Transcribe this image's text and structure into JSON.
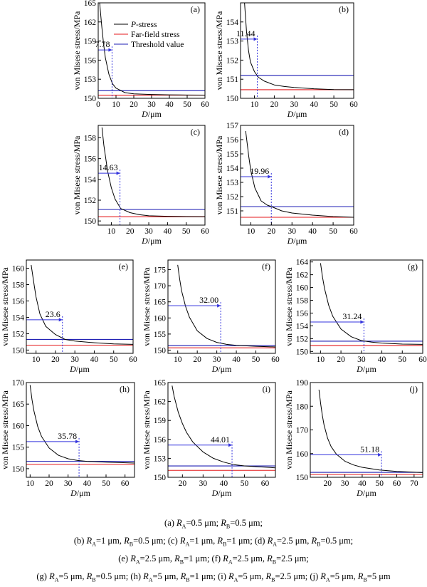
{
  "colors": {
    "p_stress": "#000000",
    "far_field": "#e41a1c",
    "threshold": "#1f1fb4",
    "marker": "#3333dd"
  },
  "axis_labels": {
    "y": "von Misese stress/MPa",
    "x_var": "D",
    "x_unit": "/μm"
  },
  "legend": {
    "p_stress_italic": "P",
    "p_stress_rest": "-stress",
    "far_field": "Far-field stress",
    "threshold": "Threshold value"
  },
  "chart_data": [
    {
      "type": "line",
      "panel": "(a)",
      "xlim": [
        0,
        60
      ],
      "ylim": [
        150,
        165
      ],
      "xticks": [
        0,
        10,
        20,
        30,
        40,
        50,
        60
      ],
      "yticks": [
        150,
        153,
        156,
        159,
        162,
        165
      ],
      "far_field": 150.5,
      "threshold": 151.2,
      "threshold_x": 7.78,
      "threshold_label": "7.78",
      "marker_y": 157.6,
      "legend_position": "top-right",
      "series": [
        {
          "x": [
            0.8,
            2,
            3,
            4,
            6,
            8,
            10,
            15,
            20,
            30,
            40,
            50,
            60
          ],
          "y": [
            165,
            161.3,
            158.6,
            156.4,
            153.8,
            152.3,
            151.6,
            150.9,
            150.7,
            150.6,
            150.55,
            150.52,
            150.5
          ]
        }
      ]
    },
    {
      "type": "line",
      "panel": "(b)",
      "xlim": [
        3,
        60
      ],
      "ylim": [
        150,
        155
      ],
      "xticks": [
        10,
        20,
        30,
        40,
        50,
        60
      ],
      "yticks": [
        150,
        151,
        152,
        153,
        154
      ],
      "far_field": 150.45,
      "threshold": 151.2,
      "threshold_x": 11.44,
      "threshold_label": "11.44",
      "marker_y": 153.1,
      "series": [
        {
          "x": [
            5,
            6,
            7,
            8,
            10,
            12,
            15,
            20,
            25,
            30,
            40,
            50,
            60
          ],
          "y": [
            155,
            153.5,
            152.5,
            151.9,
            151.4,
            151.1,
            150.9,
            150.7,
            150.62,
            150.57,
            150.5,
            150.46,
            150.45
          ]
        }
      ]
    },
    {
      "type": "line",
      "panel": "(c)",
      "xlim": [
        3,
        60
      ],
      "ylim": [
        149.6,
        159.2
      ],
      "xticks": [
        10,
        20,
        30,
        40,
        50,
        60
      ],
      "yticks": [
        150,
        152,
        154,
        156,
        158
      ],
      "far_field": 150.4,
      "threshold": 151.1,
      "threshold_x": 14.63,
      "threshold_label": "14.63",
      "marker_y": 154.6,
      "series": [
        {
          "x": [
            5,
            6,
            8,
            10,
            12,
            15,
            20,
            25,
            30,
            40,
            50,
            60
          ],
          "y": [
            159,
            157.3,
            154.8,
            153.2,
            152.1,
            151.2,
            150.8,
            150.6,
            150.5,
            150.45,
            150.42,
            150.4
          ]
        }
      ]
    },
    {
      "type": "line",
      "panel": "(d)",
      "xlim": [
        5,
        60
      ],
      "ylim": [
        150,
        157
      ],
      "xticks": [
        10,
        20,
        30,
        40,
        50,
        60
      ],
      "yticks": [
        151,
        152,
        153,
        154,
        155,
        156,
        157
      ],
      "far_field": 150.55,
      "threshold": 151.3,
      "threshold_x": 19.96,
      "threshold_label": "19.96",
      "marker_y": 153.4,
      "series": [
        {
          "x": [
            7.5,
            9,
            10,
            12,
            15,
            18,
            20,
            25,
            30,
            40,
            50,
            60
          ],
          "y": [
            156.6,
            154.8,
            153.8,
            152.6,
            151.7,
            151.4,
            151.3,
            151,
            150.85,
            150.7,
            150.6,
            150.55
          ]
        }
      ]
    },
    {
      "type": "line",
      "panel": "(e)",
      "xlim": [
        5,
        60
      ],
      "ylim": [
        149.6,
        161
      ],
      "xticks": [
        10,
        20,
        30,
        40,
        50,
        60
      ],
      "yticks": [
        150,
        152,
        154,
        156,
        158,
        160
      ],
      "far_field": 150.6,
      "threshold": 151.3,
      "threshold_x": 23.6,
      "threshold_label": "23.6",
      "marker_y": 153.7,
      "series": [
        {
          "x": [
            7.5,
            9,
            10,
            12,
            15,
            20,
            25,
            30,
            40,
            50,
            60
          ],
          "y": [
            160.4,
            158,
            156.5,
            154.4,
            152.9,
            151.9,
            151.3,
            151.1,
            150.9,
            150.75,
            150.7
          ]
        }
      ]
    },
    {
      "type": "line",
      "panel": "(f)",
      "xlim": [
        5,
        60
      ],
      "ylim": [
        149,
        178
      ],
      "xticks": [
        10,
        20,
        30,
        40,
        50,
        60
      ],
      "yticks": [
        150,
        155,
        160,
        165,
        170,
        175
      ],
      "far_field": 150.7,
      "threshold": 151.4,
      "threshold_x": 32.0,
      "threshold_label": "32.00",
      "marker_y": 163.8,
      "series": [
        {
          "x": [
            10,
            11,
            12,
            14,
            16,
            20,
            25,
            30,
            35,
            40,
            50,
            60
          ],
          "y": [
            176.5,
            172,
            168.4,
            163.6,
            160.2,
            156,
            153.6,
            152.4,
            151.8,
            151.5,
            151.2,
            151
          ]
        }
      ]
    },
    {
      "type": "line",
      "panel": "(g)",
      "xlim": [
        5,
        60
      ],
      "ylim": [
        149.7,
        164.3
      ],
      "xticks": [
        10,
        20,
        30,
        40,
        50,
        60
      ],
      "yticks": [
        150,
        152,
        154,
        156,
        158,
        160,
        162,
        164
      ],
      "far_field": 150.9,
      "threshold": 151.6,
      "threshold_x": 31.24,
      "threshold_label": "31.24",
      "marker_y": 154.6,
      "series": [
        {
          "x": [
            10,
            11,
            12,
            14,
            16,
            20,
            25,
            30,
            35,
            40,
            50,
            60
          ],
          "y": [
            163.8,
            161.6,
            159.8,
            157.2,
            155.5,
            153.5,
            152.3,
            151.7,
            151.45,
            151.3,
            151.15,
            151.1
          ]
        }
      ]
    },
    {
      "type": "line",
      "panel": "(h)",
      "xlim": [
        8,
        65
      ],
      "ylim": [
        148,
        170
      ],
      "xticks": [
        10,
        20,
        30,
        40,
        50,
        60
      ],
      "yticks": [
        150,
        155,
        160,
        165,
        170
      ],
      "far_field": 151.0,
      "threshold": 151.7,
      "threshold_x": 35.78,
      "threshold_label": "35.78",
      "marker_y": 156.3,
      "series": [
        {
          "x": [
            10,
            11,
            12,
            14,
            16,
            20,
            25,
            30,
            35,
            40,
            50,
            65
          ],
          "y": [
            169.4,
            166,
            163.4,
            159.8,
            157.5,
            154.8,
            153.1,
            152.3,
            151.9,
            151.7,
            151.5,
            151.3
          ]
        }
      ]
    },
    {
      "type": "line",
      "panel": "(i)",
      "xlim": [
        13,
        65
      ],
      "ylim": [
        150,
        165
      ],
      "xticks": [
        20,
        30,
        40,
        50,
        60
      ],
      "yticks": [
        150,
        153,
        156,
        159,
        162,
        165
      ],
      "far_field": 151.1,
      "threshold": 151.8,
      "threshold_x": 44.01,
      "threshold_label": "44.01",
      "marker_y": 155.1,
      "series": [
        {
          "x": [
            15,
            16,
            18,
            20,
            22,
            25,
            30,
            35,
            40,
            45,
            50,
            65
          ],
          "y": [
            164.5,
            162.8,
            160.3,
            158.5,
            157.1,
            155.6,
            154,
            153,
            152.4,
            152,
            151.8,
            151.5
          ]
        }
      ]
    },
    {
      "type": "line",
      "panel": "(j)",
      "xlim": [
        10,
        75
      ],
      "ylim": [
        150,
        190
      ],
      "xticks": [
        20,
        30,
        40,
        50,
        60,
        70
      ],
      "yticks": [
        150,
        160,
        170,
        180,
        190
      ],
      "far_field": 151.2,
      "threshold": 152.1,
      "threshold_x": 51.18,
      "threshold_label": "51.18",
      "marker_y": 159.5,
      "series": [
        {
          "x": [
            15,
            16,
            17,
            18,
            20,
            22,
            25,
            30,
            35,
            40,
            50,
            60,
            75
          ],
          "y": [
            187,
            181,
            176,
            172,
            166.5,
            163,
            159.8,
            156.8,
            155.2,
            154.2,
            153.1,
            152.5,
            152
          ]
        }
      ]
    }
  ],
  "caption": {
    "line1": [
      [
        "(a) ",
        ""
      ],
      [
        "R",
        "i"
      ],
      [
        "A",
        "sub"
      ],
      [
        "=0.5 μm; ",
        ""
      ],
      [
        "R",
        "i"
      ],
      [
        "B",
        "sub"
      ],
      [
        "=0.5 μm;",
        ""
      ]
    ],
    "line2": [
      [
        "(b) ",
        ""
      ],
      [
        "R",
        "i"
      ],
      [
        "A",
        "sub"
      ],
      [
        "=1 μm, ",
        ""
      ],
      [
        "R",
        "i"
      ],
      [
        "B",
        "sub"
      ],
      [
        "=0.5 μm; (c) ",
        ""
      ],
      [
        "R",
        "i"
      ],
      [
        "A",
        "sub"
      ],
      [
        "=1 μm, ",
        ""
      ],
      [
        "R",
        "i"
      ],
      [
        "B",
        "sub"
      ],
      [
        "=1 μm; (d) ",
        ""
      ],
      [
        "R",
        "i"
      ],
      [
        "A",
        "sub"
      ],
      [
        "=2.5 μm, ",
        ""
      ],
      [
        "R",
        "i"
      ],
      [
        "B",
        "sub"
      ],
      [
        "=0.5 μm;",
        ""
      ]
    ],
    "line3": [
      [
        "(e) ",
        ""
      ],
      [
        "R",
        "i"
      ],
      [
        "A",
        "sub"
      ],
      [
        "=2.5 μm, ",
        ""
      ],
      [
        "R",
        "i"
      ],
      [
        "B",
        "sub"
      ],
      [
        "=1 μm; (f) ",
        ""
      ],
      [
        "R",
        "i"
      ],
      [
        "A",
        "sub"
      ],
      [
        "=2.5 μm, ",
        ""
      ],
      [
        "R",
        "i"
      ],
      [
        "B",
        "sub"
      ],
      [
        "=2.5 μm;",
        ""
      ]
    ],
    "line4": [
      [
        "(g) ",
        ""
      ],
      [
        "R",
        "i"
      ],
      [
        "A",
        "sub"
      ],
      [
        "=5 μm, ",
        ""
      ],
      [
        "R",
        "i"
      ],
      [
        "B",
        "sub"
      ],
      [
        "=0.5 μm; (h) ",
        ""
      ],
      [
        "R",
        "i"
      ],
      [
        "A",
        "sub"
      ],
      [
        "=5 μm, ",
        ""
      ],
      [
        "R",
        "i"
      ],
      [
        "B",
        "sub"
      ],
      [
        "=1 μm; (i) ",
        ""
      ],
      [
        "R",
        "i"
      ],
      [
        "A",
        "sub"
      ],
      [
        "=5 μm, ",
        ""
      ],
      [
        "R",
        "i"
      ],
      [
        "B",
        "sub"
      ],
      [
        "=2.5 μm; (j) ",
        ""
      ],
      [
        "R",
        "i"
      ],
      [
        "A",
        "sub"
      ],
      [
        "=5 μm, ",
        ""
      ],
      [
        "R",
        "i"
      ],
      [
        "B",
        "sub"
      ],
      [
        "=5 μm",
        ""
      ]
    ]
  }
}
